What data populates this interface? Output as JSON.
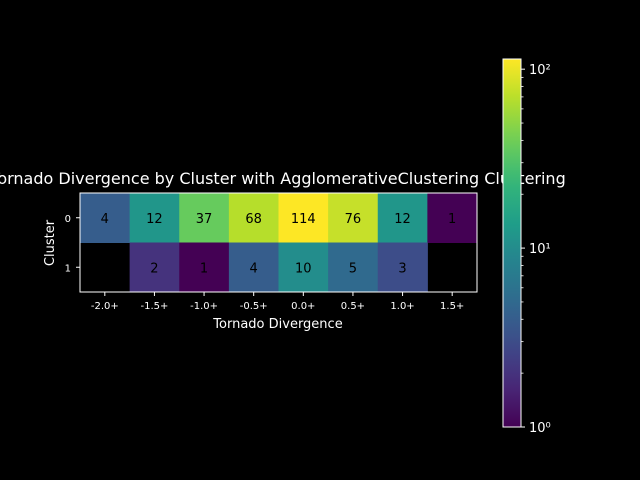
{
  "chart_data": {
    "type": "heatmap",
    "title": "Tornado Divergence by Cluster with AgglomerativeClustering Clustering",
    "xlabel": "Tornado Divergence",
    "ylabel": "Cluster",
    "x_categories": [
      "-2.0+",
      "-1.5+",
      "-1.0+",
      "-0.5+",
      "0.0+",
      "0.5+",
      "1.0+",
      "1.5+"
    ],
    "y_categories": [
      "0",
      "1"
    ],
    "values": [
      [
        4,
        12,
        37,
        68,
        114,
        76,
        12,
        1
      ],
      [
        null,
        2,
        1,
        4,
        10,
        5,
        3,
        null
      ]
    ],
    "colorbar": {
      "scale": "log",
      "range": [
        1,
        114
      ],
      "tick_labels": [
        "10⁰",
        "10¹",
        "10²"
      ],
      "tick_values": [
        1,
        10,
        100
      ],
      "colormap": "viridis"
    },
    "colors": {
      "background": "#000000",
      "foreground": "#ffffff",
      "annotation": "#000000"
    }
  }
}
